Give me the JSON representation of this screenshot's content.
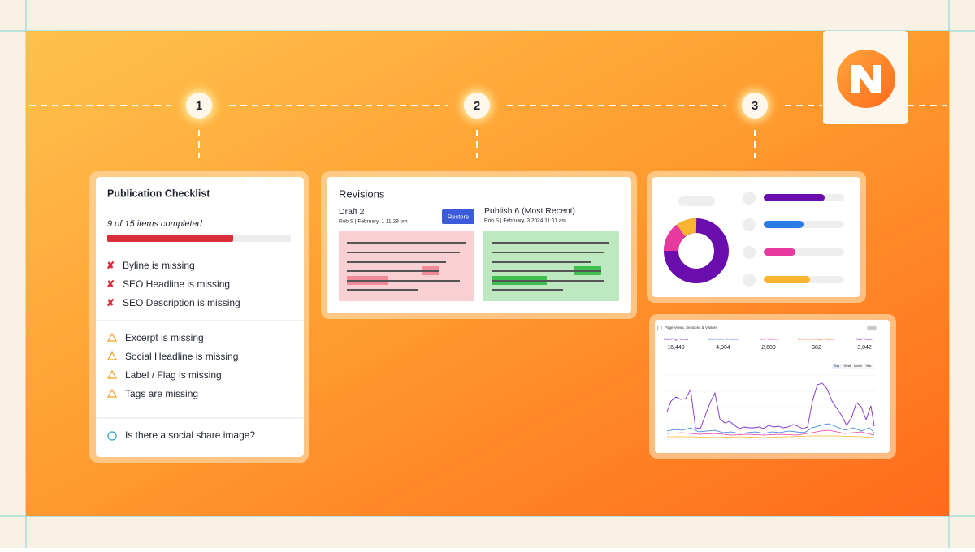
{
  "steps": [
    "1",
    "2",
    "3"
  ],
  "checklist": {
    "title": "Publication Checklist",
    "progress": "9 of 15 items completed",
    "errors": [
      "Byline is missing",
      "SEO Headline is missing",
      "SEO Description is missing"
    ],
    "warnings": [
      "Excerpt is missing",
      "Social Headline is missing",
      "Label / Flag is missing",
      "Tags are missing"
    ],
    "info": "Is there a social share image?"
  },
  "revisions": {
    "title": "Revisions",
    "left_name": "Draft 2",
    "left_meta": "Rob S | February, 1 11:29 pm",
    "button": "Restore",
    "right_name": "Publish 6 (Most Recent)",
    "right_meta": "Rob S | February, 3 2024 11:01 am"
  },
  "analytics": {
    "title": "Page Views, Sessions & Visitors",
    "stats": [
      {
        "label": "Total Page Views",
        "value": "16,449"
      },
      {
        "label": "Total Visitor Sessions",
        "value": "4,904"
      },
      {
        "label": "New Visitors",
        "value": "2,680"
      },
      {
        "label": "Returning Unique Visitors",
        "value": "382"
      },
      {
        "label": "Total Visitors",
        "value": "3,042"
      }
    ],
    "tabs": [
      "Day",
      "Week",
      "Month",
      "Year"
    ]
  }
}
